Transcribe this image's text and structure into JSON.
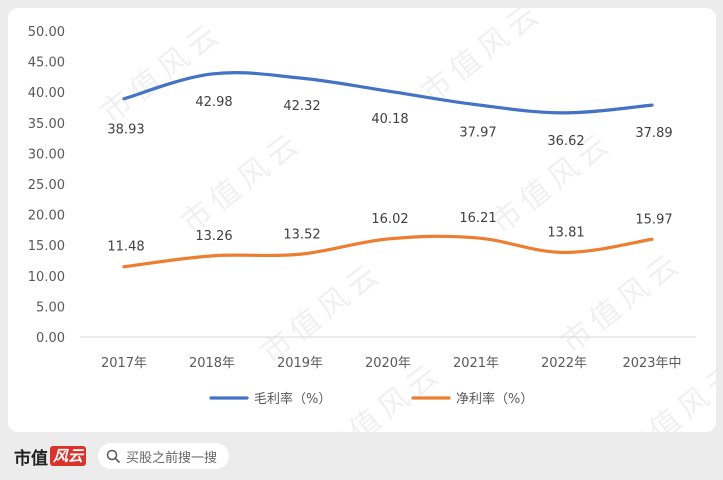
{
  "chart_data": {
    "type": "line",
    "categories": [
      "2017年",
      "2018年",
      "2019年",
      "2020年",
      "2021年",
      "2022年",
      "2023年中"
    ],
    "series": [
      {
        "name": "毛利率（%）",
        "color": "#4472c4",
        "values": [
          38.93,
          42.98,
          42.32,
          40.18,
          37.97,
          36.62,
          37.89
        ]
      },
      {
        "name": "净利率（%）",
        "color": "#ed7d31",
        "values": [
          11.48,
          13.26,
          13.52,
          16.02,
          16.21,
          13.81,
          15.97
        ]
      }
    ],
    "y_ticks": [
      "50.00",
      "45.00",
      "40.00",
      "35.00",
      "30.00",
      "25.00",
      "20.00",
      "15.00",
      "10.00",
      "5.00",
      "0.00"
    ],
    "ylim": [
      0,
      50
    ],
    "grid": false,
    "legend_position": "bottom"
  },
  "watermark_text": "市值风云",
  "footer": {
    "brand_text": "市值",
    "brand_mark_text": "风云",
    "search_placeholder": "买股之前搜一搜",
    "search_icon": "search-icon"
  }
}
